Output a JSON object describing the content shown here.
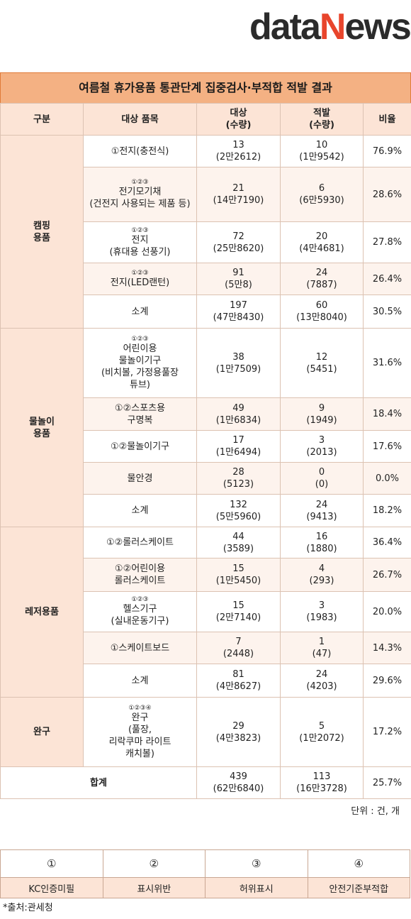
{
  "logo": {
    "part1": "data",
    "part2": "N",
    "part3": "ews"
  },
  "title": "여름철 휴가용품 통관단계 집중검사·부적합 적발 결과",
  "table": {
    "header": [
      "구분",
      "대상 품목",
      "대상\n(수량)",
      "적발\n(수량)",
      "비율"
    ],
    "groups": [
      {
        "label": "캠핑\n용품",
        "rows": [
          {
            "item": "①전지(충전식)",
            "target": 13,
            "target_qty": "(2만2612)",
            "caught": 10,
            "caught_qty": "(1만9542)",
            "ratio": "76.9%"
          },
          {
            "marks": "①②③",
            "item": "전기모기채\n(건전지 사용되는 제품 등)",
            "target": 21,
            "target_qty": "(14만7190)",
            "caught": 6,
            "caught_qty": "(6만5930)",
            "ratio": "28.6%"
          },
          {
            "marks": "①②③",
            "item": "전지\n(휴대용 선풍기)",
            "target": 72,
            "target_qty": "(25만8620)",
            "caught": 20,
            "caught_qty": "(4만4681)",
            "ratio": "27.8%"
          },
          {
            "marks": "①②③",
            "item": "전지(LED랜턴)",
            "target": 91,
            "target_qty": "(5만8)",
            "caught": 24,
            "caught_qty": "(7887)",
            "ratio": "26.4%"
          },
          {
            "item": "소계",
            "target": 197,
            "target_qty": "(47만8430)",
            "caught": 60,
            "caught_qty": "(13만8040)",
            "ratio": "30.5%"
          }
        ]
      },
      {
        "label": "물놀이\n용품",
        "rows": [
          {
            "marks": "①②③",
            "item": "어린이용\n물놀이기구\n(비치볼, 가정용풀장\n튜브)",
            "target": 38,
            "target_qty": "(1만7509)",
            "caught": 12,
            "caught_qty": "(5451)",
            "ratio": "31.6%"
          },
          {
            "item": "①②스포츠용\n구명복",
            "target": 49,
            "target_qty": "(1만6834)",
            "caught": 9,
            "caught_qty": "(1949)",
            "ratio": "18.4%"
          },
          {
            "item": "①②물놀이기구",
            "target": 17,
            "target_qty": "(1만6494)",
            "caught": 3,
            "caught_qty": "(2013)",
            "ratio": "17.6%"
          },
          {
            "item": "물안경",
            "target": 28,
            "target_qty": "(5123)",
            "caught": 0,
            "caught_qty": "(0)",
            "ratio": "0.0%"
          },
          {
            "item": "소계",
            "target": 132,
            "target_qty": "(5만5960)",
            "caught": 24,
            "caught_qty": "(9413)",
            "ratio": "18.2%"
          }
        ]
      },
      {
        "label": "레저용품",
        "rows": [
          {
            "item": "①②롤러스케이트",
            "target": 44,
            "target_qty": "(3589)",
            "caught": 16,
            "caught_qty": "(1880)",
            "ratio": "36.4%"
          },
          {
            "item": "①②어린이용\n롤러스케이트",
            "target": 15,
            "target_qty": "(1만5450)",
            "caught": 4,
            "caught_qty": "(293)",
            "ratio": "26.7%"
          },
          {
            "marks": "①②③",
            "item": "헬스기구\n(실내운동기구)",
            "target": 15,
            "target_qty": "(2만7140)",
            "caught": 3,
            "caught_qty": "(1983)",
            "ratio": "20.0%"
          },
          {
            "item": "①스케이트보드",
            "target": 7,
            "target_qty": "(2448)",
            "caught": 1,
            "caught_qty": "(47)",
            "ratio": "14.3%"
          },
          {
            "item": "소계",
            "target": 81,
            "target_qty": "(4만8627)",
            "caught": 24,
            "caught_qty": "(4203)",
            "ratio": "29.6%"
          }
        ]
      },
      {
        "label": "완구",
        "rows": [
          {
            "marks": "①②③④",
            "item": "완구\n(풀장,\n리락쿠마 라이트\n캐치볼)",
            "target": 29,
            "target_qty": "(4만3823)",
            "caught": 5,
            "caught_qty": "(1만2072)",
            "ratio": "17.2%"
          }
        ]
      }
    ],
    "total": {
      "label": "합계",
      "target": 439,
      "target_qty": "(62만6840)",
      "caught": 113,
      "caught_qty": "(16만3728)",
      "ratio": "25.7%"
    }
  },
  "unit": "단위 : 건, 개",
  "legend": {
    "symbols": [
      "①",
      "②",
      "③",
      "④"
    ],
    "labels": [
      "KC인증미필",
      "표시위반",
      "허위표시",
      "안전기준부적합"
    ]
  },
  "source": "*출처:관세청"
}
